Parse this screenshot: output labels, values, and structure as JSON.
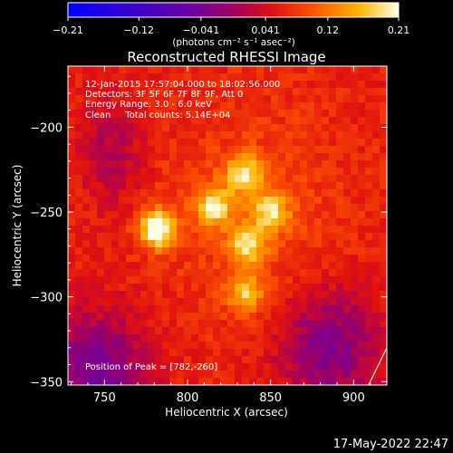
{
  "chart_data": {
    "type": "heatmap",
    "title": "Reconstructed RHESSI Image",
    "xlabel": "Heliocentric X (arcsec)",
    "ylabel": "Heliocentric Y (arcsec)",
    "xlim": [
      728,
      920
    ],
    "ylim": [
      -352,
      -164
    ],
    "x_ticks": [
      750,
      800,
      850,
      900
    ],
    "y_ticks": [
      -200,
      -250,
      -300,
      -350
    ],
    "colorbar": {
      "min": -0.21,
      "max": 0.21,
      "ticks": [
        -0.21,
        -0.12,
        -0.041,
        0.041,
        0.12,
        0.21
      ],
      "label": "(photons cm⁻² s⁻¹ asec⁻²)"
    },
    "annotations": [
      "12-Jan-2015 17:57:04.000 to 18:02:56.000",
      "Detectors: 3F 5F 6F 7F 8F 9F, Att 0",
      "Energy Range: 3.0 - 6.0 keV",
      "Clean     Total counts: 5.14E+04"
    ],
    "peak_text": "Position of Peak = [782,-260]",
    "peak": [
      782,
      -260
    ],
    "sources": [
      {
        "x": 782,
        "y": -260,
        "value": 0.21
      },
      {
        "x": 816,
        "y": -247,
        "value": 0.16
      },
      {
        "x": 834,
        "y": -228,
        "value": 0.16
      },
      {
        "x": 850,
        "y": -250,
        "value": 0.15
      },
      {
        "x": 836,
        "y": -270,
        "value": 0.15
      },
      {
        "x": 835,
        "y": -298,
        "value": 0.14
      }
    ],
    "grid": false
  },
  "footer": {
    "date": "17-May-2022 22:47"
  }
}
